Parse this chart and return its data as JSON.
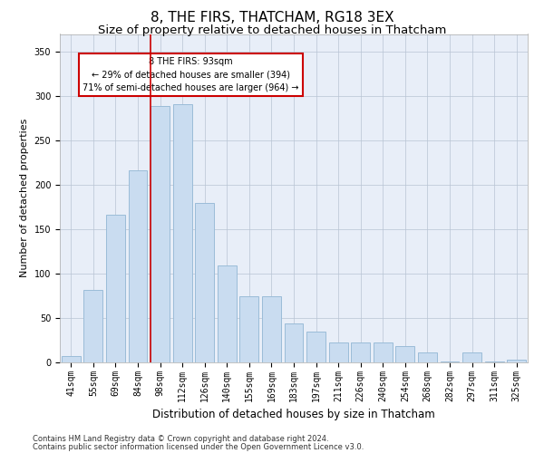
{
  "title": "8, THE FIRS, THATCHAM, RG18 3EX",
  "subtitle": "Size of property relative to detached houses in Thatcham",
  "xlabel": "Distribution of detached houses by size in Thatcham",
  "ylabel": "Number of detached properties",
  "categories": [
    "41sqm",
    "55sqm",
    "69sqm",
    "84sqm",
    "98sqm",
    "112sqm",
    "126sqm",
    "140sqm",
    "155sqm",
    "169sqm",
    "183sqm",
    "197sqm",
    "211sqm",
    "226sqm",
    "240sqm",
    "254sqm",
    "268sqm",
    "282sqm",
    "297sqm",
    "311sqm",
    "325sqm"
  ],
  "bar_values": [
    7,
    82,
    166,
    216,
    289,
    291,
    180,
    109,
    75,
    75,
    44,
    35,
    22,
    22,
    22,
    18,
    11,
    1,
    11,
    1,
    3
  ],
  "bar_color": "#c9dcf0",
  "bar_edge_color": "#9bbcd8",
  "vline_color": "#cc0000",
  "annotation_text": "8 THE FIRS: 93sqm\n← 29% of detached houses are smaller (394)\n71% of semi-detached houses are larger (964) →",
  "annotation_box_color": "#ffffff",
  "annotation_box_edge": "#cc0000",
  "ylim": [
    0,
    370
  ],
  "yticks": [
    0,
    50,
    100,
    150,
    200,
    250,
    300,
    350
  ],
  "background_color": "#e8eef8",
  "footer_line1": "Contains HM Land Registry data © Crown copyright and database right 2024.",
  "footer_line2": "Contains public sector information licensed under the Open Government Licence v3.0.",
  "title_fontsize": 11,
  "subtitle_fontsize": 9.5,
  "xlabel_fontsize": 8.5,
  "ylabel_fontsize": 8,
  "tick_fontsize": 7,
  "footer_fontsize": 6
}
